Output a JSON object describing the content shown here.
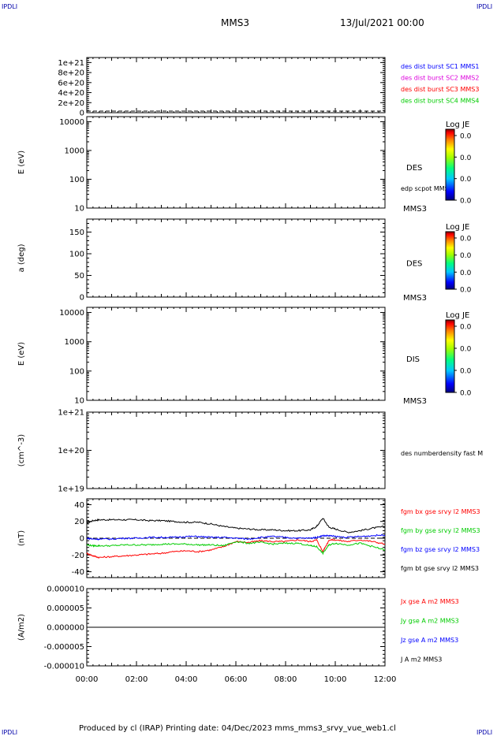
{
  "header": {
    "corner_label": "IPDLI",
    "spacecraft": "MMS3",
    "date": "13/Jul/2021 00:00"
  },
  "footer": {
    "text": "Produced by cl (IRAP)   Printing date: 04/Dec/2023   mms_mms3_srvy_vue_web1.cl"
  },
  "colors": {
    "blue": "#0000ff",
    "magenta": "#dd00dd",
    "red": "#ff0000",
    "green": "#00cc00",
    "black": "#000000"
  },
  "chart_data": [
    {
      "type": "line",
      "panel": "availability",
      "ylabel": "",
      "ylim": [
        0,
        1.1e+21
      ],
      "ticks": [
        "1e+21",
        "8e+20",
        "6e+20",
        "4e+20",
        "2e+20",
        "0"
      ],
      "tick_values": [
        1e+21,
        8e+20,
        6e+20,
        4e+20,
        2e+20,
        0
      ],
      "legend": [
        {
          "text": "des dist burst SC1 MMS1",
          "color": "blue"
        },
        {
          "text": "des dist burst SC2 MMS2",
          "color": "magenta"
        },
        {
          "text": "des dist burst SC3 MMS3",
          "color": "red"
        },
        {
          "text": "des dist burst SC4 MMS4",
          "color": "green"
        }
      ],
      "series": []
    },
    {
      "type": "heatmap",
      "panel": "des_energy",
      "ylabel": "E (eV)",
      "yscale": "log",
      "ylim": [
        10,
        15000
      ],
      "ticks": [
        "10000",
        "1000",
        "100",
        "10"
      ],
      "tick_values": [
        10000,
        1000,
        100,
        10
      ],
      "side_label": "DES",
      "extra_label": "edp scpot MMS3",
      "sc_label": "MMS3",
      "colorbar": {
        "title": "Log JE",
        "ticks": [
          "0.0",
          "0.0",
          "0.0",
          "0.0"
        ]
      }
    },
    {
      "type": "heatmap",
      "panel": "des_pitch",
      "ylabel": "a (deg)",
      "ylim": [
        0,
        180
      ],
      "ticks": [
        "150",
        "100",
        "50",
        "0"
      ],
      "tick_values": [
        150,
        100,
        50,
        0
      ],
      "side_label": "DES",
      "sc_label": "MMS3",
      "colorbar": {
        "title": "Log JE",
        "ticks": [
          "0.0",
          "0.0",
          "0.0",
          "0.0"
        ]
      }
    },
    {
      "type": "heatmap",
      "panel": "dis_energy",
      "ylabel": "E (eV)",
      "yscale": "log",
      "ylim": [
        10,
        15000
      ],
      "ticks": [
        "10000",
        "1000",
        "100",
        "10"
      ],
      "tick_values": [
        10000,
        1000,
        100,
        10
      ],
      "side_label": "DIS",
      "sc_label": "MMS3",
      "colorbar": {
        "title": "Log JE",
        "ticks": [
          "0.0",
          "0.0",
          "0.0",
          "0.0"
        ]
      }
    },
    {
      "type": "line",
      "panel": "density",
      "ylabel": "(cm^-3)",
      "yscale": "log",
      "ylim": [
        1e+19,
        1e+21
      ],
      "ticks": [
        "1e+21",
        "1e+20",
        "1e+19"
      ],
      "tick_values": [
        1e+21,
        1e+20,
        1e+19
      ],
      "legend": [
        {
          "text": "des numberdensity fast M",
          "color": "black"
        }
      ],
      "series": []
    },
    {
      "type": "line",
      "panel": "fgm",
      "ylabel": "(nT)",
      "ylim": [
        -47,
        47
      ],
      "ticks": [
        "40",
        "20",
        "0",
        "-20",
        "-40"
      ],
      "tick_values": [
        40,
        20,
        0,
        -20,
        -40
      ],
      "x": [
        0,
        0.25,
        0.5,
        1,
        1.5,
        2,
        2.5,
        3,
        3.5,
        4,
        4.5,
        5,
        5.5,
        6,
        6.5,
        7,
        7.5,
        8,
        8.5,
        9,
        9.25,
        9.5,
        9.75,
        10,
        10.5,
        11,
        11.5,
        12
      ],
      "series": [
        {
          "name": "fgm bt gse srvy l2 MMS3",
          "color": "black",
          "values": [
            18,
            21,
            22,
            22,
            22,
            22,
            21,
            21,
            20,
            19,
            19,
            17,
            14,
            12,
            11,
            10,
            10,
            9,
            9,
            10,
            14,
            24,
            13,
            11,
            7,
            9,
            12,
            14
          ]
        },
        {
          "name": "fgm bx gse srvy l2 MMS3",
          "color": "red",
          "values": [
            -18,
            -21,
            -23,
            -22,
            -21,
            -20,
            -19,
            -18,
            -16,
            -15,
            -16,
            -14,
            -10,
            -4,
            -5,
            -3,
            -4,
            -4,
            -2,
            -4,
            -2,
            -16,
            -2,
            -2,
            -4,
            -2,
            -4,
            -7
          ]
        },
        {
          "name": "fgm by gse srvy l2 MMS3",
          "color": "green",
          "values": [
            -8,
            -9,
            -9,
            -9,
            -8,
            -8,
            -8,
            -7,
            -7,
            -7,
            -8,
            -8,
            -9,
            -4,
            -6,
            -5,
            -7,
            -6,
            -6,
            -9,
            -10,
            -18,
            -8,
            -6,
            -8,
            -6,
            -10,
            -14
          ]
        },
        {
          "name": "fgm bz gse srvy l2 MMS3",
          "color": "blue",
          "values": [
            0,
            -1,
            -1,
            -1,
            0,
            0,
            1,
            1,
            1,
            2,
            2,
            1,
            1,
            0,
            -1,
            1,
            2,
            1,
            0,
            0,
            1,
            3,
            3,
            2,
            1,
            2,
            3,
            4
          ]
        }
      ]
    },
    {
      "type": "line",
      "panel": "current",
      "ylabel": "(A/m2)",
      "ylim": [
        -1e-05,
        1e-05
      ],
      "ticks": [
        "0.000010",
        "0.000005",
        "0.000000",
        "-0.000005",
        "-0.000010"
      ],
      "tick_values": [
        1e-05,
        5e-06,
        0,
        -5e-06,
        -1e-05
      ],
      "x": [
        0,
        12
      ],
      "xlim": [
        0,
        12
      ],
      "xticks": [
        "00:00",
        "02:00",
        "04:00",
        "06:00",
        "08:00",
        "10:00",
        "12:00"
      ],
      "series": [
        {
          "name": "Jx gse A m2 MMS3",
          "color": "red",
          "values": [
            0,
            0
          ]
        },
        {
          "name": "Jy gse A m2 MMS3",
          "color": "green",
          "values": [
            0,
            0
          ]
        },
        {
          "name": "Jz gse A m2 MMS3",
          "color": "blue",
          "values": [
            0,
            0
          ]
        },
        {
          "name": "J A m2 MMS3",
          "color": "black",
          "values": [
            0,
            0
          ]
        }
      ]
    }
  ]
}
